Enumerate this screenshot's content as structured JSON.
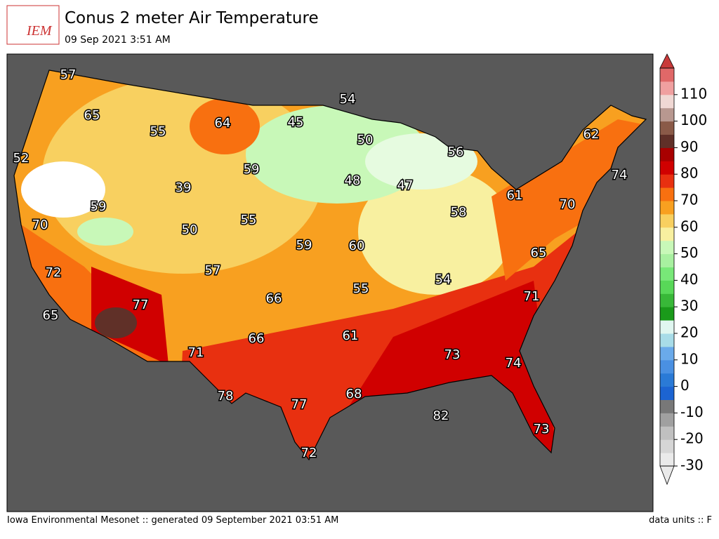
{
  "header": {
    "logo": "IEM",
    "title": "Conus 2 meter Air Temperature",
    "subtitle": "09 Sep 2021 3:51 AM"
  },
  "map": {
    "labels": [
      57,
      65,
      52,
      55,
      64,
      45,
      54,
      50,
      56,
      62,
      74,
      39,
      59,
      48,
      47,
      61,
      70,
      59,
      70,
      50,
      55,
      59,
      60,
      58,
      65,
      72,
      57,
      55,
      54,
      71,
      77,
      66,
      65,
      66,
      61,
      73,
      74,
      71,
      78,
      77,
      68,
      82,
      73,
      72
    ]
  },
  "colorbar": {
    "lim": [
      -30,
      120
    ],
    "ticks": [
      -30,
      -20,
      -10,
      0,
      10,
      20,
      30,
      40,
      50,
      60,
      70,
      80,
      90,
      100,
      110
    ],
    "colors": [
      "#eaeaea",
      "#d6d6d6",
      "#c0c0c0",
      "#a0a0a0",
      "#787878",
      "#1c64d2",
      "#2a7ad6",
      "#4a90e2",
      "#6aaaea",
      "#a8dce8",
      "#e0f6f0",
      "#1a9a1a",
      "#38b838",
      "#58d858",
      "#78e878",
      "#a8f0a0",
      "#c8f8b8",
      "#f8f0a0",
      "#f8d060",
      "#f8a020",
      "#f87010",
      "#e83010",
      "#d00000",
      "#a80000",
      "#603028",
      "#8a5a48",
      "#b89890",
      "#f0d8d4",
      "#f0a0a0",
      "#e06868",
      "#c83a3a"
    ]
  },
  "footer": {
    "left": "Iowa Environmental Mesonet :: generated 09 September 2021 03:51 AM",
    "right": "data units :: F"
  }
}
